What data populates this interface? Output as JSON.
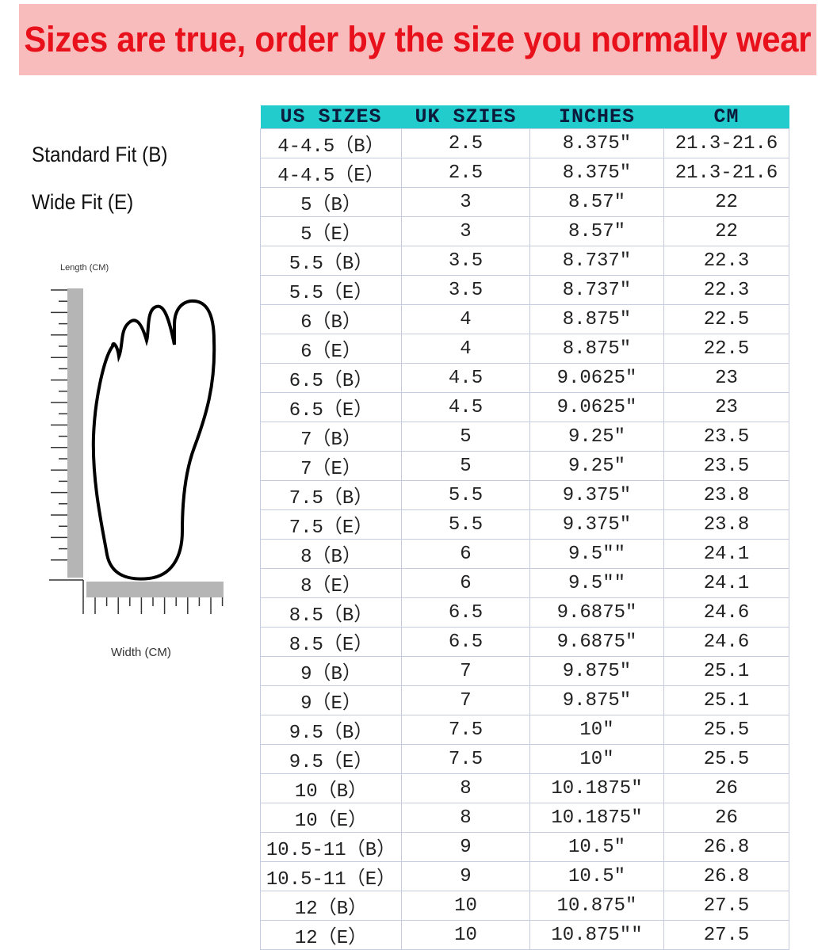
{
  "banner": {
    "text": "Sizes are true, order by the size you normally wear",
    "bg_color": "#f9bcbc",
    "text_color": "#e8101a"
  },
  "fit_labels": {
    "standard": "Standard Fit (B)",
    "wide": "Wide Fit (E)"
  },
  "diagram": {
    "length_label": "Length (CM)",
    "width_label": "Width (CM)"
  },
  "table": {
    "header_color": "#22cbcc",
    "headers": [
      "US SIZES",
      "UK SZIES",
      "INCHES",
      "CM"
    ],
    "rows": [
      [
        "4-4.5（B）",
        "2.5",
        "8.375″",
        "21.3-21.6"
      ],
      [
        "4-4.5（E）",
        "2.5",
        "8.375″",
        "21.3-21.6"
      ],
      [
        "5（B）",
        "3",
        "8.57″",
        "22"
      ],
      [
        "5（E）",
        "3",
        "8.57″",
        "22"
      ],
      [
        "5.5（B）",
        "3.5",
        "8.737″",
        "22.3"
      ],
      [
        "5.5（E）",
        "3.5",
        "8.737″",
        "22.3"
      ],
      [
        "6（B）",
        "4",
        "8.875″",
        "22.5"
      ],
      [
        "6（E）",
        "4",
        "8.875″",
        "22.5"
      ],
      [
        "6.5（B）",
        "4.5",
        "9.0625″",
        "23"
      ],
      [
        "6.5（E）",
        "4.5",
        "9.0625″",
        "23"
      ],
      [
        "7（B）",
        "5",
        "9.25″",
        "23.5"
      ],
      [
        "7（E）",
        "5",
        "9.25″",
        "23.5"
      ],
      [
        "7.5（B）",
        "5.5",
        "9.375″",
        "23.8"
      ],
      [
        "7.5（E）",
        "5.5",
        "9.375″",
        "23.8"
      ],
      [
        "8（B）",
        "6",
        "9.5″″",
        "24.1"
      ],
      [
        "8（E）",
        "6",
        "9.5″″",
        "24.1"
      ],
      [
        "8.5（B）",
        "6.5",
        "9.6875″",
        "24.6"
      ],
      [
        "8.5（E）",
        "6.5",
        "9.6875″",
        "24.6"
      ],
      [
        "9（B）",
        "7",
        "9.875″",
        "25.1"
      ],
      [
        "9（E）",
        "7",
        "9.875″",
        "25.1"
      ],
      [
        "9.5（B）",
        "7.5",
        "10″",
        "25.5"
      ],
      [
        "9.5（E）",
        "7.5",
        "10″",
        "25.5"
      ],
      [
        "10（B）",
        "8",
        "10.1875″",
        "26"
      ],
      [
        "10（E）",
        "8",
        "10.1875″",
        "26"
      ],
      [
        "10.5-11（B）",
        "9",
        "10.5″",
        "26.8"
      ],
      [
        "10.5-11（E）",
        "9",
        "10.5″",
        "26.8"
      ],
      [
        "12（B）",
        "10",
        "10.875″",
        "27.5"
      ],
      [
        "12（E）",
        "10",
        "10.875″″",
        "27.5"
      ]
    ]
  }
}
